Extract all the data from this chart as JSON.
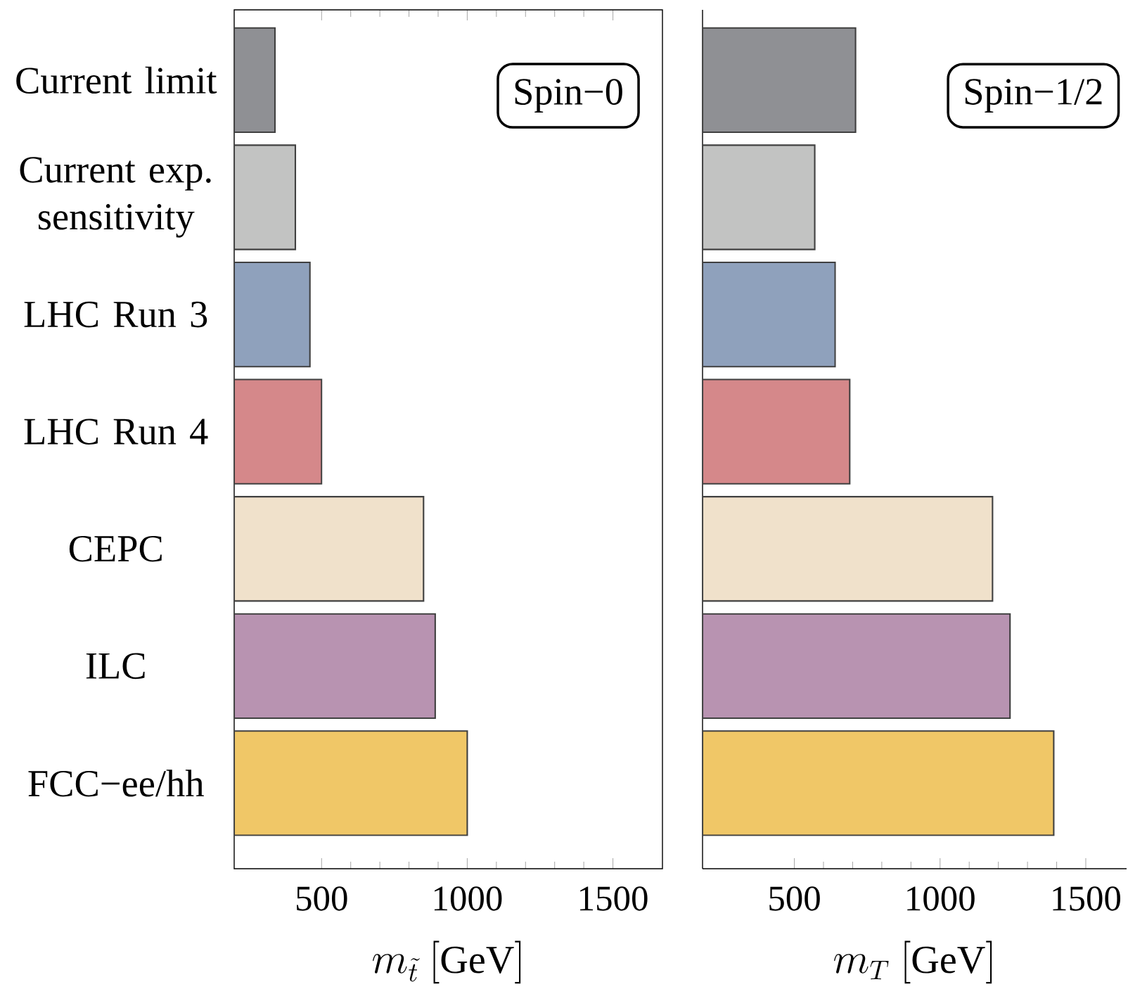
{
  "chart_data": [
    {
      "type": "bar",
      "orientation": "horizontal",
      "xlabel": "m_{\\tilde{t}}\\ [\\mathrm{GeV}]",
      "categories": [
        "Current limit",
        "Current exp. sensitivity",
        "LHC Run 3",
        "LHC Run 4",
        "CEPC",
        "ILC",
        "FCC−ee/hh"
      ],
      "values": [
        340,
        410,
        460,
        500,
        850,
        890,
        1000
      ],
      "colors": [
        "#8f9094",
        "#c2c3c2",
        "#8fa1bc",
        "#d5888a",
        "#f0e1cb",
        "#b893b1",
        "#f0c767"
      ],
      "xlim": [
        200,
        1670
      ],
      "xticks": [
        500,
        1000,
        1500
      ],
      "annotations": [
        "Spin−0"
      ]
    },
    {
      "type": "bar",
      "orientation": "horizontal",
      "xlabel": "m_{T}\\ [\\mathrm{GeV}]",
      "categories": [
        null,
        null,
        null,
        null,
        null,
        null,
        null
      ],
      "values": [
        710,
        570,
        640,
        690,
        1180,
        1240,
        1390
      ],
      "colors": [
        "#8f9094",
        "#c2c3c2",
        "#8fa1bc",
        "#d5888a",
        "#f0e1cb",
        "#b893b1",
        "#f0c767"
      ],
      "xlim": [
        185,
        1640
      ],
      "xticks": [
        500,
        1000,
        1500
      ],
      "tick_labels": "x",
      "annotations": [
        "Spin−1/2"
      ]
    }
  ]
}
